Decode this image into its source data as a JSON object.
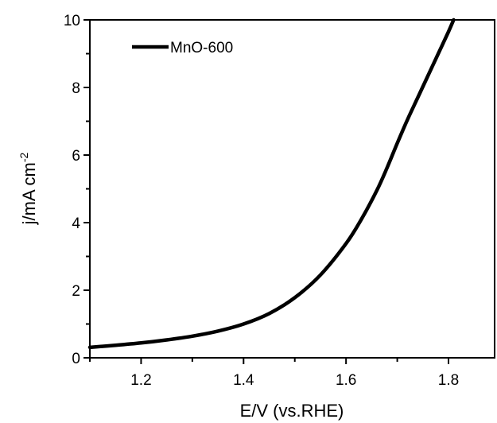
{
  "chart_data": {
    "type": "line",
    "xlabel": "E/V (vs.RHE)",
    "ylabel_main": "j/mA cm",
    "ylabel_superscript": "-2",
    "xlim": [
      1.1,
      1.89
    ],
    "ylim": [
      0,
      10
    ],
    "x_ticks": [
      1.2,
      1.4,
      1.6,
      1.8
    ],
    "x_tick_labels": [
      "1.2",
      "1.4",
      "1.6",
      "1.8"
    ],
    "x_minor_ticks": [
      1.1,
      1.3,
      1.5,
      1.7
    ],
    "y_ticks": [
      0,
      2,
      4,
      6,
      8,
      10
    ],
    "y_tick_labels": [
      "0",
      "2",
      "4",
      "6",
      "8",
      "10"
    ],
    "y_minor_ticks": [
      1,
      3,
      5,
      7,
      9
    ],
    "grid": false,
    "legend_position": "top-left",
    "series": [
      {
        "name": "MnO-600",
        "color": "#000000",
        "x": [
          1.1,
          1.15,
          1.2,
          1.25,
          1.3,
          1.35,
          1.4,
          1.45,
          1.5,
          1.55,
          1.6,
          1.63,
          1.66,
          1.68,
          1.7,
          1.72,
          1.74,
          1.76,
          1.78,
          1.8,
          1.81
        ],
        "y": [
          0.31,
          0.37,
          0.44,
          0.53,
          0.64,
          0.79,
          1.0,
          1.31,
          1.78,
          2.45,
          3.38,
          4.1,
          4.95,
          5.62,
          6.35,
          7.05,
          7.7,
          8.35,
          9.0,
          9.65,
          10.0
        ]
      }
    ]
  }
}
